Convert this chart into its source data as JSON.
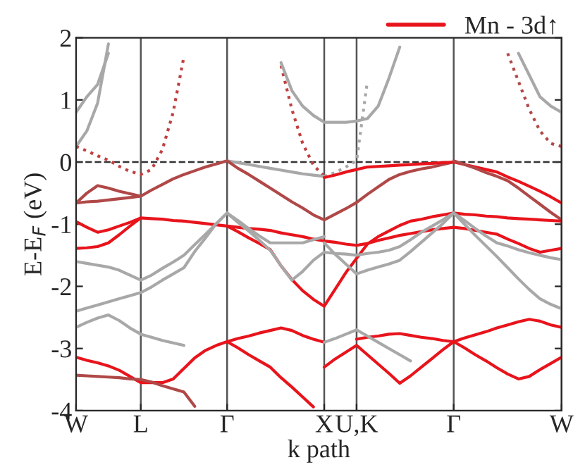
{
  "chart_data": {
    "type": "line",
    "xlabel": "k path",
    "ylabel": "E-E$_{F}$ (eV)",
    "categories": [
      "W",
      null,
      null,
      null,
      null,
      null,
      "L",
      null,
      null,
      null,
      null,
      null,
      null,
      null,
      "Γ",
      null,
      null,
      null,
      null,
      null,
      null,
      null,
      null,
      "X",
      null,
      null,
      "U,K",
      null,
      null,
      null,
      null,
      null,
      null,
      null,
      null,
      "Γ",
      null,
      null,
      null,
      null,
      null,
      null,
      null,
      null,
      null,
      "W"
    ],
    "ylim": [
      -4,
      2
    ],
    "yticks": [
      -4,
      -3,
      -2,
      -1,
      0,
      1,
      2
    ],
    "grid": "x",
    "legend": "top right",
    "ref_lines": [
      {
        "axis": "y",
        "value": 0,
        "color": "#333333",
        "line_style": "dashed"
      }
    ],
    "series": [
      {
        "name": "Mn - 3d↑",
        "color": "#e8141c",
        "values": [
          -0.96,
          -1.05,
          -1.13,
          -1.09,
          -1.03,
          -0.97,
          -0.9,
          -0.91,
          -0.92,
          -0.94,
          -0.95,
          -0.97,
          -0.99,
          -1.01,
          -1.03,
          -1.05,
          -1.07,
          -1.08,
          -1.1,
          -1.14,
          -1.17,
          -1.2,
          -1.24,
          -1.27,
          -1.29,
          -1.32,
          -1.34,
          -1.31,
          -1.26,
          -1.22,
          -1.18,
          -1.15,
          -1.12,
          -1.09,
          -1.07,
          -1.05,
          -1.07,
          -1.1,
          -1.13,
          -1.16,
          -1.24,
          -1.31,
          -1.39,
          -1.45,
          -1.42,
          -1.39
        ]
      },
      {
        "color": "#a8a8a8",
        "values": [
          0.8,
          1.05,
          1.25,
          1.75,
          null,
          null,
          null,
          null,
          null,
          null,
          null,
          null,
          null,
          null,
          null,
          null,
          null,
          null,
          null,
          null,
          null,
          null,
          null,
          null,
          null,
          null,
          null,
          null,
          null,
          null,
          null,
          null,
          null,
          null,
          null,
          null,
          null,
          null,
          null,
          null,
          null,
          null,
          null,
          null,
          null,
          null
        ]
      },
      {
        "color": "#a8a8a8",
        "values": [
          0.25,
          0.5,
          0.95,
          1.9,
          null,
          null,
          null,
          null,
          null,
          null,
          null,
          null,
          null,
          null,
          null,
          null,
          null,
          null,
          null,
          null,
          null,
          null,
          null,
          null,
          null,
          null,
          null,
          null,
          null,
          null,
          null,
          null,
          null,
          null,
          null,
          null,
          null,
          null,
          null,
          null,
          null,
          null,
          null,
          null,
          null,
          null
        ]
      },
      {
        "color": "#c04040",
        "line_style": "dotted",
        "values": [
          0.25,
          0.18,
          0.1,
          0.03,
          -0.07,
          -0.15,
          -0.2,
          -0.12,
          0.2,
          0.8,
          1.7,
          null,
          null,
          null,
          null,
          null,
          null,
          null,
          null,
          null,
          null,
          null,
          null,
          null,
          null,
          null,
          null,
          null,
          null,
          null,
          null,
          null,
          null,
          null,
          null,
          null,
          null,
          null,
          null,
          null,
          null,
          null,
          null,
          null,
          null,
          null
        ]
      },
      {
        "color": "#c04040",
        "line_style": "dotted",
        "values": [
          null,
          null,
          null,
          null,
          null,
          null,
          null,
          null,
          null,
          null,
          null,
          null,
          null,
          null,
          null,
          null,
          null,
          null,
          null,
          1.55,
          0.85,
          0.3,
          -0.05,
          -0.23,
          null,
          null,
          null,
          null,
          null,
          null,
          null,
          null,
          null,
          null,
          null,
          null,
          null,
          null,
          null,
          null,
          null,
          null,
          null,
          null,
          null,
          null
        ]
      },
      {
        "color": "#a8a8a8",
        "values": [
          null,
          null,
          null,
          null,
          null,
          null,
          null,
          null,
          null,
          null,
          null,
          null,
          null,
          null,
          null,
          null,
          null,
          null,
          null,
          1.6,
          1.15,
          0.9,
          0.75,
          0.64,
          0.64,
          0.64,
          0.66,
          0.7,
          0.9,
          1.35,
          1.85,
          null,
          null,
          null,
          null,
          null,
          null,
          null,
          null,
          null,
          null,
          null,
          null,
          null,
          null,
          null
        ]
      },
      {
        "color": "#a8a8a8",
        "line_style": "dotted",
        "values": [
          null,
          null,
          null,
          null,
          null,
          null,
          null,
          null,
          null,
          null,
          null,
          null,
          null,
          null,
          null,
          null,
          null,
          null,
          null,
          null,
          null,
          null,
          null,
          -0.23,
          -0.17,
          -0.08,
          0.02,
          1.3,
          null,
          null,
          null,
          null,
          null,
          null,
          null,
          null,
          null,
          null,
          null,
          null,
          null,
          null,
          null,
          null,
          null,
          null
        ]
      },
      {
        "color": "#a8a8a8",
        "values": [
          null,
          null,
          null,
          null,
          null,
          null,
          null,
          null,
          null,
          null,
          null,
          null,
          null,
          null,
          null,
          null,
          null,
          null,
          null,
          null,
          null,
          null,
          null,
          null,
          null,
          null,
          null,
          null,
          null,
          null,
          null,
          null,
          null,
          null,
          null,
          null,
          null,
          null,
          null,
          null,
          null,
          1.75,
          1.4,
          1.05,
          0.9,
          0.8
        ]
      },
      {
        "color": "#b04848",
        "line_style": "dotted",
        "values": [
          null,
          null,
          null,
          null,
          null,
          null,
          null,
          null,
          null,
          null,
          null,
          null,
          null,
          null,
          null,
          null,
          null,
          null,
          null,
          null,
          null,
          null,
          null,
          null,
          null,
          null,
          null,
          null,
          null,
          null,
          null,
          null,
          null,
          null,
          null,
          null,
          null,
          null,
          null,
          null,
          1.75,
          1.3,
          0.85,
          0.5,
          0.3,
          0.25
        ]
      },
      {
        "color": "#b04848",
        "values": [
          -0.66,
          -0.5,
          -0.38,
          -0.42,
          -0.47,
          -0.51,
          -0.55,
          -0.45,
          -0.36,
          -0.27,
          -0.2,
          -0.14,
          -0.08,
          -0.03,
          0.02,
          null,
          null,
          null,
          null,
          null,
          null,
          null,
          null,
          null,
          null,
          null,
          null,
          null,
          null,
          null,
          null,
          null,
          null,
          null,
          null,
          null,
          null,
          null,
          null,
          null,
          null,
          null,
          null,
          null,
          null,
          null
        ]
      },
      {
        "color": "#b04848",
        "values": [
          -0.66,
          -0.64,
          -0.63,
          -0.61,
          -0.59,
          -0.57,
          -0.55,
          null,
          null,
          null,
          null,
          null,
          null,
          null,
          null,
          null,
          null,
          null,
          null,
          null,
          null,
          null,
          null,
          null,
          null,
          null,
          null,
          null,
          null,
          null,
          null,
          null,
          null,
          null,
          null,
          null,
          null,
          null,
          null,
          null,
          null,
          null,
          null,
          null,
          null,
          null
        ]
      },
      {
        "color": "#a8a8a8",
        "values": [
          null,
          null,
          null,
          null,
          null,
          null,
          null,
          null,
          null,
          null,
          null,
          null,
          null,
          null,
          0.02,
          -0.01,
          -0.04,
          -0.07,
          -0.1,
          -0.13,
          -0.16,
          -0.19,
          -0.21,
          -0.23,
          null,
          null,
          null,
          null,
          null,
          null,
          null,
          null,
          null,
          null,
          null,
          null,
          null,
          null,
          null,
          null,
          null,
          null,
          null,
          null,
          null,
          null
        ]
      },
      {
        "color": "#b04848",
        "values": [
          null,
          null,
          null,
          null,
          null,
          null,
          null,
          null,
          null,
          null,
          null,
          null,
          null,
          null,
          0.02,
          -0.1,
          -0.2,
          -0.31,
          -0.42,
          -0.53,
          -0.64,
          -0.74,
          -0.85,
          -0.93,
          -0.84,
          -0.75,
          -0.65,
          -0.52,
          -0.4,
          -0.28,
          -0.2,
          -0.15,
          -0.11,
          -0.08,
          -0.04,
          0.0,
          null,
          null,
          null,
          null,
          null,
          null,
          null,
          null,
          null,
          null
        ]
      },
      {
        "color": "#e8141c",
        "values": [
          null,
          null,
          null,
          null,
          null,
          null,
          null,
          null,
          null,
          null,
          null,
          null,
          null,
          null,
          null,
          null,
          null,
          null,
          null,
          null,
          null,
          null,
          null,
          -0.25,
          -0.21,
          -0.16,
          -0.12,
          -0.08,
          -0.07,
          -0.06,
          -0.05,
          -0.04,
          -0.03,
          -0.02,
          -0.01,
          0,
          -0.04,
          -0.08,
          -0.12,
          -0.16,
          -0.24,
          -0.31,
          -0.39,
          -0.47,
          -0.56,
          -0.66
        ]
      },
      {
        "color": "#b04848",
        "values": [
          null,
          null,
          null,
          null,
          null,
          null,
          null,
          null,
          null,
          null,
          null,
          null,
          null,
          null,
          null,
          null,
          null,
          null,
          null,
          null,
          null,
          null,
          null,
          null,
          null,
          null,
          null,
          null,
          null,
          null,
          null,
          null,
          null,
          null,
          null,
          0.02,
          -0.04,
          -0.1,
          -0.17,
          -0.23,
          -0.3,
          -0.42,
          -0.55,
          -0.68,
          -0.81,
          -0.93
        ]
      },
      {
        "color": "#e8141c",
        "values": [
          -1.39,
          -1.38,
          -1.36,
          -1.3,
          -1.17,
          -1.03,
          -0.9,
          null,
          null,
          null,
          null,
          null,
          null,
          null,
          null,
          null,
          null,
          null,
          null,
          null,
          null,
          null,
          null,
          null,
          null,
          null,
          null,
          null,
          null,
          null,
          null,
          null,
          null,
          null,
          null,
          null,
          null,
          null,
          null,
          null,
          null,
          null,
          null,
          null,
          null,
          null
        ]
      },
      {
        "color": "#e8141c",
        "values": [
          null,
          null,
          null,
          null,
          null,
          null,
          null,
          null,
          null,
          null,
          null,
          null,
          null,
          null,
          -1.03,
          -1.12,
          -1.22,
          -1.31,
          -1.41,
          -1.67,
          -1.89,
          -2.07,
          -2.21,
          -2.32,
          -2.05,
          -1.78,
          -1.55,
          -1.32,
          -1.2,
          -1.11,
          -1.02,
          -0.95,
          -0.92,
          -0.88,
          -0.85,
          -0.82,
          -0.84,
          -0.85,
          -0.87,
          -0.88,
          -0.9,
          -0.91,
          -0.92,
          -0.93,
          -0.94,
          -0.95
        ]
      },
      {
        "color": "#a8a8a8",
        "values": [
          -1.6,
          -1.63,
          -1.66,
          -1.69,
          -1.74,
          -1.82,
          -1.9,
          -1.82,
          -1.71,
          -1.61,
          -1.5,
          -1.33,
          -1.16,
          -0.99,
          -0.82,
          -0.97,
          -1.11,
          -1.26,
          -1.42,
          -1.67,
          -1.9,
          -1.76,
          -1.58,
          -1.45,
          null,
          null,
          null,
          null,
          null,
          null,
          null,
          null,
          null,
          null,
          null,
          null,
          null,
          null,
          null,
          null,
          null,
          null,
          null,
          null,
          null,
          null
        ]
      },
      {
        "color": "#a8a8a8",
        "values": [
          -2.4,
          -2.35,
          -2.3,
          -2.25,
          -2.2,
          -2.15,
          -2.1,
          -2.01,
          -1.9,
          -1.8,
          -1.7,
          -1.44,
          -1.22,
          -0.99,
          -0.82,
          -0.94,
          -1.07,
          -1.19,
          -1.3,
          -1.3,
          -1.3,
          -1.3,
          -1.25,
          -1.2,
          null,
          null,
          null,
          null,
          null,
          null,
          null,
          null,
          null,
          null,
          null,
          null,
          null,
          null,
          null,
          null,
          null,
          null,
          null,
          null,
          null,
          null
        ]
      },
      {
        "color": "#a8a8a8",
        "values": [
          null,
          null,
          null,
          null,
          null,
          null,
          null,
          null,
          null,
          null,
          null,
          null,
          null,
          null,
          null,
          null,
          null,
          null,
          null,
          null,
          null,
          null,
          null,
          null,
          null,
          null,
          null,
          null,
          null,
          null,
          null,
          null,
          null,
          null,
          null,
          -0.82,
          -1.0,
          -1.18,
          -1.35,
          -1.52,
          -1.7,
          -1.88,
          -2.05,
          -2.2,
          -2.29,
          -2.36
        ]
      },
      {
        "color": "#a8a8a8",
        "values": [
          null,
          null,
          null,
          null,
          null,
          null,
          null,
          null,
          null,
          null,
          null,
          null,
          null,
          null,
          null,
          null,
          null,
          null,
          null,
          null,
          null,
          null,
          null,
          null,
          null,
          null,
          null,
          null,
          null,
          null,
          null,
          null,
          null,
          null,
          null,
          -0.82,
          -0.94,
          -1.07,
          -1.19,
          -1.3,
          -1.35,
          -1.41,
          -1.46,
          -1.5,
          -1.54,
          -1.57
        ]
      },
      {
        "color": "#a8a8a8",
        "values": [
          null,
          null,
          null,
          null,
          null,
          null,
          null,
          null,
          null,
          null,
          null,
          null,
          null,
          null,
          null,
          null,
          null,
          null,
          null,
          null,
          null,
          null,
          null,
          -1.3,
          -1.48,
          -1.64,
          -1.8,
          -1.74,
          -1.69,
          -1.64,
          -1.58,
          -1.44,
          -1.29,
          -1.14,
          -0.99,
          -0.82,
          null,
          null,
          null,
          null,
          null,
          null,
          null,
          null,
          null,
          null
        ]
      },
      {
        "color": "#a8a8a8",
        "values": [
          null,
          null,
          null,
          null,
          null,
          null,
          null,
          null,
          null,
          null,
          null,
          null,
          null,
          null,
          null,
          null,
          null,
          null,
          null,
          null,
          null,
          null,
          null,
          -1.45,
          -1.47,
          -1.48,
          -1.5,
          -1.47,
          -1.45,
          -1.42,
          -1.36,
          -1.25,
          -1.13,
          -1.03,
          -0.93,
          -0.82,
          null,
          null,
          null,
          null,
          null,
          null,
          null,
          null,
          null,
          null
        ]
      },
      {
        "color": "#a8a8a8",
        "values": [
          -2.66,
          -2.58,
          -2.51,
          -2.46,
          -2.55,
          -2.67,
          -2.77,
          -2.82,
          -2.87,
          -2.91,
          -2.95,
          null,
          null,
          null,
          null,
          null,
          null,
          null,
          null,
          null,
          null,
          null,
          null,
          null,
          null,
          null,
          null,
          null,
          null,
          null,
          null,
          null,
          null,
          null,
          null,
          null,
          null,
          null,
          null,
          null,
          null,
          null,
          null,
          null,
          null,
          null
        ]
      },
      {
        "color": "#e8141c",
        "values": [
          -3.14,
          -3.19,
          -3.23,
          -3.28,
          -3.35,
          -3.45,
          -3.55,
          -3.55,
          -3.55,
          -3.49,
          -3.32,
          -3.15,
          -3.03,
          -2.95,
          -2.89,
          -2.84,
          -2.8,
          -2.75,
          -2.71,
          -2.67,
          -2.71,
          -2.79,
          -2.85,
          -2.9,
          null,
          null,
          null,
          null,
          null,
          null,
          null,
          null,
          null,
          null,
          null,
          null,
          null,
          null,
          null,
          null,
          null,
          null,
          null,
          null,
          null,
          null
        ]
      },
      {
        "color": "#e8141c",
        "values": [
          null,
          null,
          null,
          null,
          null,
          null,
          null,
          null,
          null,
          null,
          null,
          null,
          null,
          null,
          -2.89,
          -2.99,
          -3.1,
          -3.2,
          -3.3,
          -3.47,
          -3.62,
          -3.78,
          -3.94,
          null,
          null,
          null,
          null,
          null,
          null,
          null,
          null,
          null,
          null,
          null,
          null,
          null,
          null,
          null,
          null,
          null,
          null,
          null,
          null,
          null,
          null,
          null
        ]
      },
      {
        "color": "#b04848",
        "values": [
          -3.43,
          -3.44,
          -3.45,
          -3.46,
          -3.47,
          -3.49,
          -3.5,
          -3.54,
          -3.6,
          -3.65,
          -3.7,
          -3.93,
          null,
          null,
          null,
          null,
          null,
          null,
          null,
          null,
          null,
          null,
          null,
          null,
          null,
          null,
          null,
          null,
          null,
          null,
          null,
          null,
          null,
          null,
          null,
          null,
          null,
          null,
          null,
          null,
          null,
          null,
          null,
          null,
          null,
          null
        ]
      },
      {
        "color": "#e8141c",
        "values": [
          null,
          null,
          null,
          null,
          null,
          null,
          null,
          null,
          null,
          null,
          null,
          null,
          null,
          null,
          null,
          null,
          null,
          null,
          null,
          null,
          null,
          null,
          null,
          -3.3,
          -3.17,
          -3.06,
          -2.95,
          -3.1,
          -3.25,
          -3.4,
          -3.56,
          -3.44,
          -3.3,
          -3.16,
          -3.02,
          -2.89,
          null,
          null,
          null,
          null,
          null,
          null,
          null,
          null,
          null,
          null
        ]
      },
      {
        "color": "#e8141c",
        "values": [
          null,
          null,
          null,
          null,
          null,
          null,
          null,
          null,
          null,
          null,
          null,
          null,
          null,
          null,
          null,
          null,
          null,
          null,
          null,
          null,
          null,
          null,
          null,
          null,
          null,
          null,
          -2.85,
          -2.82,
          -2.8,
          -2.77,
          -2.76,
          -2.79,
          -2.82,
          -2.84,
          -2.87,
          -2.89,
          -2.83,
          -2.78,
          -2.73,
          -2.67,
          -2.62,
          -2.57,
          -2.53,
          -2.56,
          -2.62,
          -2.66
        ]
      },
      {
        "color": "#e8141c",
        "values": [
          null,
          null,
          null,
          null,
          null,
          null,
          null,
          null,
          null,
          null,
          null,
          null,
          null,
          null,
          null,
          null,
          null,
          null,
          null,
          null,
          null,
          null,
          null,
          null,
          null,
          null,
          null,
          null,
          null,
          null,
          null,
          null,
          null,
          null,
          null,
          -2.89,
          -2.99,
          -3.1,
          -3.2,
          -3.31,
          -3.41,
          -3.49,
          -3.45,
          -3.34,
          -3.24,
          -3.14
        ]
      },
      {
        "color": "#a8a8a8",
        "values": [
          null,
          null,
          null,
          null,
          null,
          null,
          null,
          null,
          null,
          null,
          null,
          null,
          null,
          null,
          null,
          null,
          null,
          null,
          null,
          null,
          null,
          null,
          null,
          -2.9,
          -2.84,
          -2.77,
          -2.7,
          -2.8,
          -2.9,
          -3.0,
          -3.1,
          -3.2,
          null,
          null,
          null,
          null,
          null,
          null,
          null,
          null,
          null,
          null,
          null,
          null,
          null,
          null
        ]
      }
    ]
  }
}
